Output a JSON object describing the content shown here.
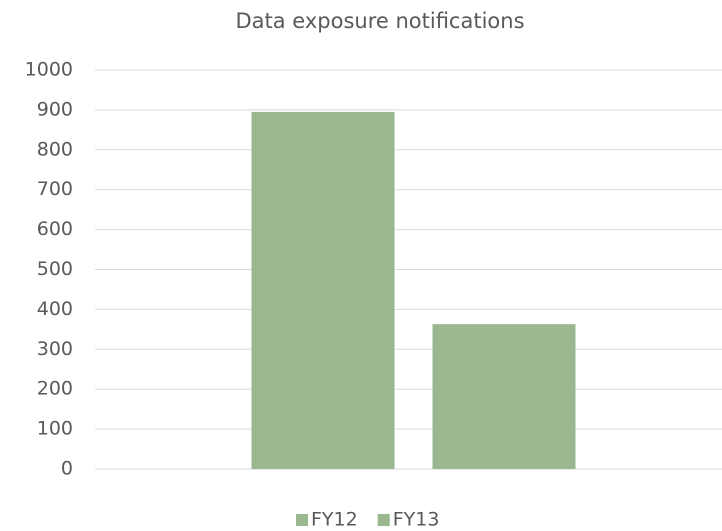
{
  "chart_data": {
    "type": "bar",
    "title": "Data exposure notifications",
    "categories": [
      null
    ],
    "series": [
      {
        "name": "FY12",
        "color": "#9bb78f",
        "values": [
          895
        ]
      },
      {
        "name": "FY13",
        "color": "#9bb78f",
        "values": [
          363
        ]
      }
    ],
    "ylim": [
      0,
      1000
    ],
    "yticks": [
      0,
      100,
      200,
      300,
      400,
      500,
      600,
      700,
      800,
      900,
      1000
    ],
    "grid": true,
    "legend": "bottom"
  }
}
